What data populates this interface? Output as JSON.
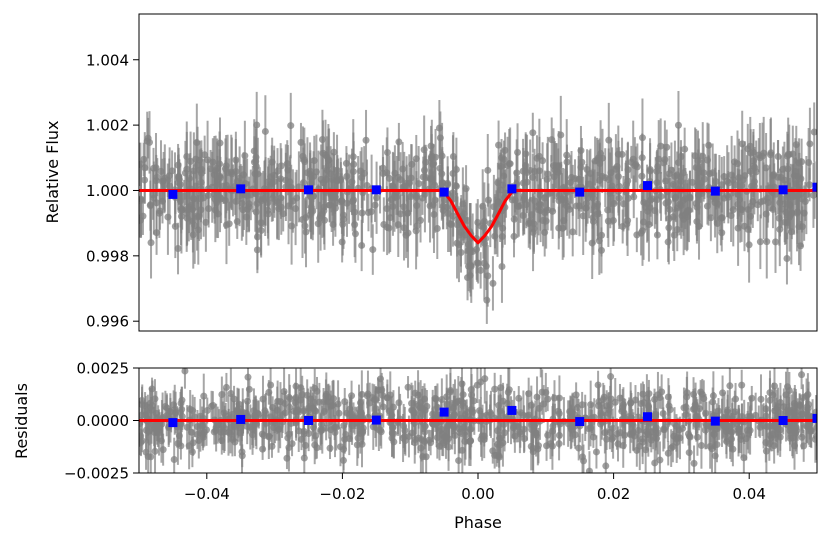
{
  "chart_data": [
    {
      "type": "scatter",
      "title": "",
      "xlabel": "",
      "ylabel": "Relative Flux",
      "xlim": [
        -0.05,
        0.05
      ],
      "ylim": [
        0.9957,
        1.0054
      ],
      "xticks": [],
      "yticks": [
        0.996,
        0.998,
        1.0,
        1.002,
        1.004
      ],
      "ytick_labels": [
        "0.996",
        "0.998",
        "1.000",
        "1.002",
        "1.004"
      ],
      "grid": false,
      "legend": "none",
      "series": [
        {
          "role": "binned",
          "color": "#0000ff",
          "marker": "square",
          "x": [
            -0.045,
            -0.035,
            -0.025,
            -0.015,
            -0.005,
            0.005,
            0.015,
            0.025,
            0.035,
            0.045,
            0.05
          ],
          "y": [
            0.99988,
            1.00005,
            1.00002,
            1.00002,
            0.99995,
            1.00005,
            0.99995,
            1.00015,
            0.99998,
            1.00002,
            1.0001
          ]
        },
        {
          "role": "model",
          "color": "#ff0000",
          "line": true,
          "x": [
            -0.05,
            -0.0055,
            -0.005,
            -0.004,
            -0.003,
            -0.002,
            -0.001,
            0.0,
            0.001,
            0.002,
            0.003,
            0.004,
            0.005,
            0.0055,
            0.05
          ],
          "y": [
            1.0,
            1.0,
            0.99995,
            0.99968,
            0.99928,
            0.9989,
            0.99862,
            0.9984,
            0.99862,
            0.9989,
            0.99928,
            0.99968,
            0.99995,
            1.0,
            1.0
          ]
        }
      ],
      "scatter_color": "#808080"
    },
    {
      "type": "scatter",
      "title": "",
      "xlabel": "Phase",
      "ylabel": "Residuals",
      "xlim": [
        -0.05,
        0.05
      ],
      "ylim": [
        -0.0025,
        0.0025
      ],
      "xticks": [
        -0.04,
        -0.02,
        0.0,
        0.02,
        0.04
      ],
      "xtick_labels": [
        "−0.04",
        "−0.02",
        "0.00",
        "0.02",
        "0.04"
      ],
      "yticks": [
        -0.0025,
        0.0,
        0.0025
      ],
      "ytick_labels": [
        "−0.0025",
        "0.0000",
        "0.0025"
      ],
      "grid": false,
      "legend": "none",
      "series": [
        {
          "role": "binned",
          "color": "#0000ff",
          "marker": "square",
          "x": [
            -0.045,
            -0.035,
            -0.025,
            -0.015,
            -0.005,
            0.005,
            0.015,
            0.025,
            0.035,
            0.045,
            0.05
          ],
          "y": [
            -0.0001,
            5e-05,
            0.0,
            2e-05,
            0.0004,
            0.00048,
            -5e-05,
            0.00018,
            -3e-05,
            0.0,
            0.0001
          ]
        },
        {
          "role": "zero-line",
          "color": "#ff0000",
          "line": true,
          "x": [
            -0.05,
            0.05
          ],
          "y": [
            0.0,
            0.0
          ]
        }
      ],
      "scatter_color": "#808080"
    }
  ]
}
